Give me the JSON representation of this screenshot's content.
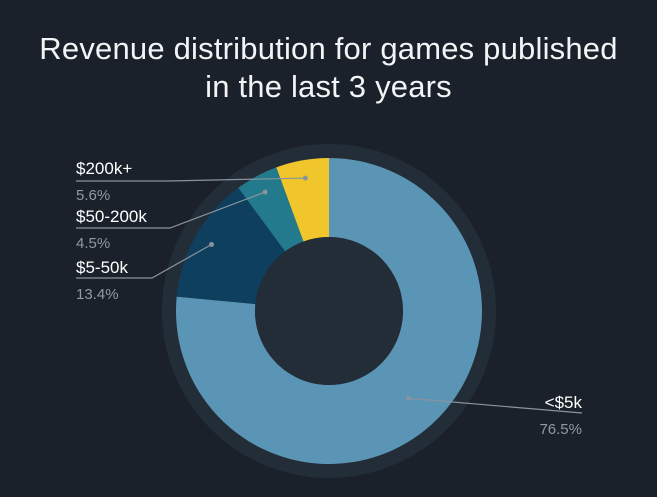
{
  "chart_data": {
    "type": "pie",
    "title_lines": [
      "Revenue distribution for games published",
      "in the last 3 years"
    ],
    "slices": [
      {
        "label": "<$5k",
        "pct_label": "76.5%",
        "value": 76.5,
        "color": "#5b95b5"
      },
      {
        "label": "$5-50k",
        "pct_label": "13.4%",
        "value": 13.4,
        "color": "#0e3f5e"
      },
      {
        "label": "$50-200k",
        "pct_label": "4.5%",
        "value": 4.5,
        "color": "#237a8c"
      },
      {
        "label": "$200k+",
        "pct_label": "5.6%",
        "value": 5.6,
        "color": "#f0c62c"
      }
    ],
    "donut": true,
    "legend": "outside labels with leader lines"
  },
  "colors": {
    "background": "#1a212a",
    "ring_shadow": "#232d38",
    "leader_line": "#8a949e"
  }
}
